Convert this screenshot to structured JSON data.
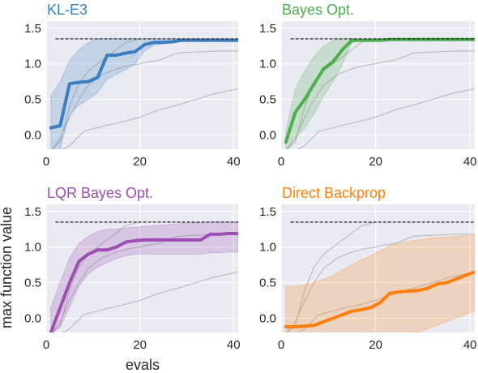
{
  "figure": {
    "ylabel": "max function value",
    "xlabel": "evals"
  },
  "chart_data": [
    {
      "type": "line",
      "title": "KL-E3",
      "color": "#3b7ebf",
      "xlim": [
        0,
        41
      ],
      "ylim": [
        -0.2,
        1.6
      ],
      "xticks": [
        0,
        20,
        40
      ],
      "yticks": [
        0.0,
        0.5,
        1.0,
        1.5
      ],
      "ytick_labels": [
        "0.0",
        "0.5",
        "1.0",
        "1.5"
      ],
      "reference_line": 1.35,
      "series": [
        {
          "x": [
            1,
            3,
            5,
            7,
            9,
            11,
            13,
            15,
            17,
            19,
            21,
            23,
            25,
            27,
            29,
            31,
            33,
            35,
            37,
            39,
            41
          ],
          "values": [
            0.1,
            0.13,
            0.72,
            0.74,
            0.75,
            0.81,
            1.12,
            1.12,
            1.15,
            1.17,
            1.27,
            1.3,
            1.3,
            1.31,
            1.33,
            1.33,
            1.33,
            1.33,
            1.33,
            1.33,
            1.33
          ],
          "lower": [
            -0.22,
            -0.2,
            0.3,
            0.42,
            0.5,
            0.6,
            0.78,
            0.85,
            0.92,
            1.0,
            1.18,
            1.26,
            1.28,
            1.3,
            1.32,
            1.32,
            1.32,
            1.32,
            1.32,
            1.32,
            1.32
          ],
          "upper": [
            0.55,
            0.75,
            1.05,
            1.2,
            1.3,
            1.35,
            1.35,
            1.35,
            1.35,
            1.35,
            1.35,
            1.35,
            1.35,
            1.35,
            1.35,
            1.35,
            1.35,
            1.35,
            1.35,
            1.35,
            1.35
          ]
        }
      ]
    },
    {
      "type": "line",
      "title": "Bayes Opt.",
      "color": "#4cae4c",
      "xlim": [
        0,
        41
      ],
      "ylim": [
        -0.2,
        1.6
      ],
      "xticks": [
        0,
        20,
        40
      ],
      "yticks": [
        0.0,
        0.5,
        1.0,
        1.5
      ],
      "ytick_labels": [
        "0.0",
        "0.5",
        "1.0",
        "1.5"
      ],
      "reference_line": 1.35,
      "series": [
        {
          "x": [
            1,
            3,
            5,
            7,
            9,
            11,
            13,
            15,
            17,
            19,
            21,
            23,
            25,
            27,
            29,
            31,
            33,
            35,
            37,
            39,
            41
          ],
          "values": [
            -0.1,
            0.32,
            0.5,
            0.72,
            0.93,
            1.03,
            1.2,
            1.33,
            1.33,
            1.33,
            1.33,
            1.34,
            1.34,
            1.34,
            1.34,
            1.34,
            1.34,
            1.34,
            1.34,
            1.34,
            1.34
          ],
          "lower": [
            -0.22,
            -0.05,
            0.1,
            0.3,
            0.55,
            0.75,
            1.0,
            1.3,
            1.32,
            1.32,
            1.32,
            1.33,
            1.33,
            1.33,
            1.33,
            1.33,
            1.33,
            1.33,
            1.33,
            1.33,
            1.33
          ],
          "upper": [
            0.05,
            0.65,
            0.9,
            1.1,
            1.25,
            1.33,
            1.35,
            1.35,
            1.35,
            1.35,
            1.35,
            1.35,
            1.35,
            1.35,
            1.35,
            1.35,
            1.35,
            1.35,
            1.35,
            1.35,
            1.35
          ]
        }
      ]
    },
    {
      "type": "line",
      "title": "LQR Bayes Opt.",
      "color": "#9b4fb0",
      "xlim": [
        0,
        41
      ],
      "ylim": [
        -0.2,
        1.6
      ],
      "xticks": [
        0,
        20,
        40
      ],
      "yticks": [
        0.0,
        0.5,
        1.0,
        1.5
      ],
      "ytick_labels": [
        "0.0",
        "0.5",
        "1.0",
        "1.5"
      ],
      "reference_line": 1.35,
      "series": [
        {
          "x": [
            1,
            3,
            5,
            7,
            9,
            11,
            13,
            15,
            17,
            19,
            21,
            23,
            25,
            27,
            29,
            31,
            33,
            35,
            37,
            39,
            41
          ],
          "values": [
            -0.2,
            0.15,
            0.5,
            0.8,
            0.9,
            0.96,
            0.96,
            1.0,
            1.07,
            1.09,
            1.1,
            1.1,
            1.1,
            1.1,
            1.1,
            1.1,
            1.1,
            1.18,
            1.18,
            1.19,
            1.19
          ],
          "lower": [
            -0.22,
            -0.12,
            0.15,
            0.45,
            0.62,
            0.72,
            0.78,
            0.84,
            0.88,
            0.9,
            0.9,
            0.9,
            0.9,
            0.9,
            0.9,
            0.9,
            0.9,
            0.92,
            0.92,
            0.93,
            0.93
          ],
          "upper": [
            0.15,
            0.5,
            0.85,
            1.05,
            1.15,
            1.22,
            1.25,
            1.25,
            1.27,
            1.28,
            1.29,
            1.3,
            1.31,
            1.32,
            1.33,
            1.34,
            1.34,
            1.35,
            1.35,
            1.35,
            1.35
          ]
        }
      ]
    },
    {
      "type": "line",
      "title": "Direct Backprop",
      "color": "#ff7f0e",
      "xlim": [
        0,
        41
      ],
      "ylim": [
        -0.2,
        1.6
      ],
      "xticks": [
        0,
        20,
        40
      ],
      "yticks": [
        0.0,
        0.5,
        1.0,
        1.5
      ],
      "ytick_labels": [
        "0.0",
        "0.5",
        "1.0",
        "1.5"
      ],
      "reference_line": 1.35,
      "series": [
        {
          "x": [
            1,
            3,
            5,
            7,
            9,
            11,
            13,
            15,
            17,
            19,
            21,
            23,
            25,
            27,
            29,
            31,
            33,
            35,
            37,
            39,
            41
          ],
          "values": [
            -0.12,
            -0.12,
            -0.11,
            -0.1,
            -0.05,
            0.0,
            0.05,
            0.1,
            0.12,
            0.15,
            0.22,
            0.35,
            0.37,
            0.38,
            0.39,
            0.42,
            0.48,
            0.5,
            0.55,
            0.6,
            0.65
          ],
          "lower": [
            -0.22,
            -0.22,
            -0.22,
            -0.22,
            -0.22,
            -0.22,
            -0.22,
            -0.22,
            -0.22,
            -0.22,
            -0.22,
            -0.22,
            -0.22,
            -0.2,
            -0.2,
            -0.15,
            -0.1,
            -0.05,
            0.0,
            0.05,
            0.1
          ],
          "upper": [
            0.45,
            0.45,
            0.47,
            0.5,
            0.55,
            0.6,
            0.68,
            0.75,
            0.82,
            0.88,
            0.95,
            1.02,
            1.06,
            1.08,
            1.1,
            1.12,
            1.13,
            1.14,
            1.15,
            1.16,
            1.16
          ]
        }
      ]
    }
  ],
  "gray_traces": [
    {
      "x": [
        1,
        3,
        5,
        8,
        12,
        16,
        20,
        24,
        28,
        32,
        36,
        41
      ],
      "values": [
        -0.22,
        -0.22,
        -0.15,
        0.05,
        0.12,
        0.18,
        0.25,
        0.35,
        0.42,
        0.5,
        0.58,
        0.65
      ]
    },
    {
      "x": [
        1,
        3,
        5,
        7,
        9,
        12,
        15,
        18,
        20,
        22,
        24,
        26,
        28,
        30,
        34,
        37,
        41
      ],
      "values": [
        -0.22,
        -0.05,
        0.25,
        0.5,
        0.7,
        0.85,
        0.93,
        0.98,
        1.0,
        1.03,
        1.05,
        1.1,
        1.15,
        1.16,
        1.17,
        1.18,
        1.18
      ]
    },
    {
      "x": [
        1,
        3,
        5,
        7,
        9,
        11,
        13,
        15,
        17,
        20
      ],
      "values": [
        -0.22,
        -0.1,
        0.4,
        0.72,
        0.9,
        1.0,
        1.1,
        1.2,
        1.3,
        1.35
      ]
    }
  ]
}
